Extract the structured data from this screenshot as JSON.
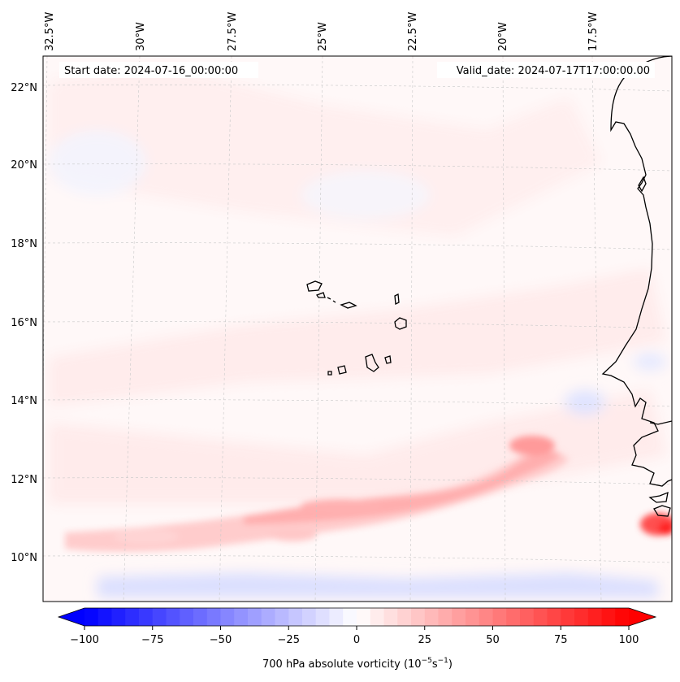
{
  "header": {
    "start_date": "Start date: 2024-07-16_00:00:00",
    "valid_date": "Valid_date: 2024-07-17T17:00:00.00"
  },
  "map": {
    "lon_ticks": [
      "32.5°W",
      "30°W",
      "27.5°W",
      "25°W",
      "22.5°W",
      "20°W",
      "17.5°W"
    ],
    "lat_ticks": [
      "22°N",
      "20°N",
      "18°N",
      "16°N",
      "14°N",
      "12°N",
      "10°N"
    ],
    "field": "700 hPa absolute vorticity",
    "gridlines": true
  },
  "colorbar": {
    "ticks": [
      "−100",
      "−75",
      "−50",
      "−25",
      "0",
      "25",
      "50",
      "75",
      "100"
    ],
    "label_main": "700 hPa absolute vorticity (10",
    "label_exp1": "−5",
    "label_mid": "s",
    "label_exp2": "−1",
    "label_end": ")",
    "range": [
      -100,
      100
    ],
    "colormap": "bwr",
    "colors": {
      "min": "#0000ff",
      "mid": "#ffffff",
      "max": "#ff0000"
    },
    "extend": "both"
  }
}
